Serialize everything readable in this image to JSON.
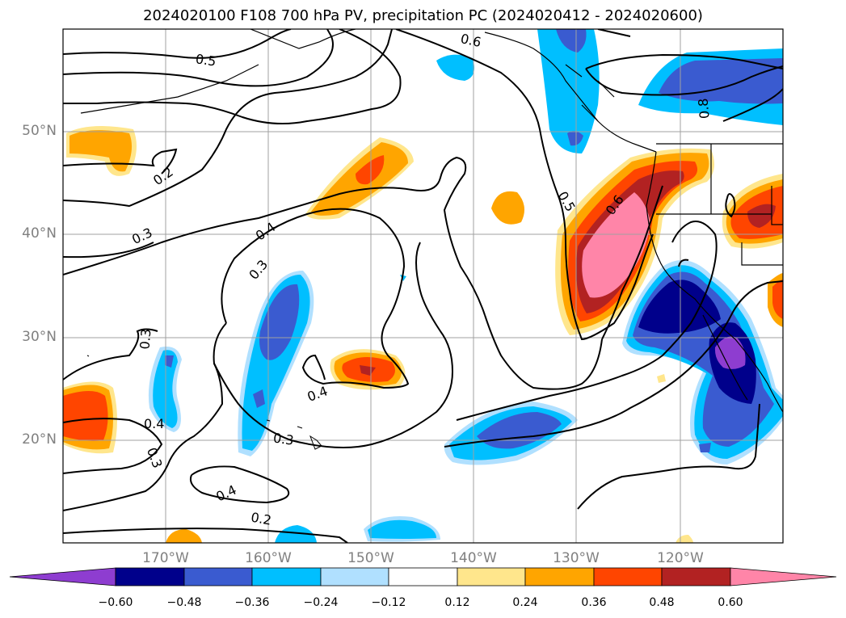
{
  "title": "2024020100 F108 700 hPa PV, precipitation PC (2024020412 - 2024020600)",
  "lat_labels": [
    "50°N",
    "40°N",
    "30°N",
    "20°N"
  ],
  "lon_labels": [
    "170°W",
    "160°W",
    "150°W",
    "140°W",
    "130°W",
    "120°W"
  ],
  "contour_labels": [
    "0.5",
    "0.6",
    "0.8",
    "0.2",
    "0.3",
    "0.4",
    "0.3",
    "0.5",
    "0.6",
    "0.3",
    "0.4",
    "0.3",
    "0.4",
    "0.3",
    "0.4",
    "0.2"
  ],
  "colorbar": {
    "tick_labels": [
      "−0.60",
      "−0.48",
      "−0.36",
      "−0.24",
      "−0.12",
      "0.12",
      "0.24",
      "0.36",
      "0.48",
      "0.60"
    ],
    "colors": [
      "#8e3dd0",
      "#00008b",
      "#3a5bd0",
      "#00bfff",
      "#b0e0ff",
      "#ffffff",
      "#ffe68c",
      "#ffa500",
      "#ff4500",
      "#b22222",
      "#ff85a8"
    ]
  }
}
